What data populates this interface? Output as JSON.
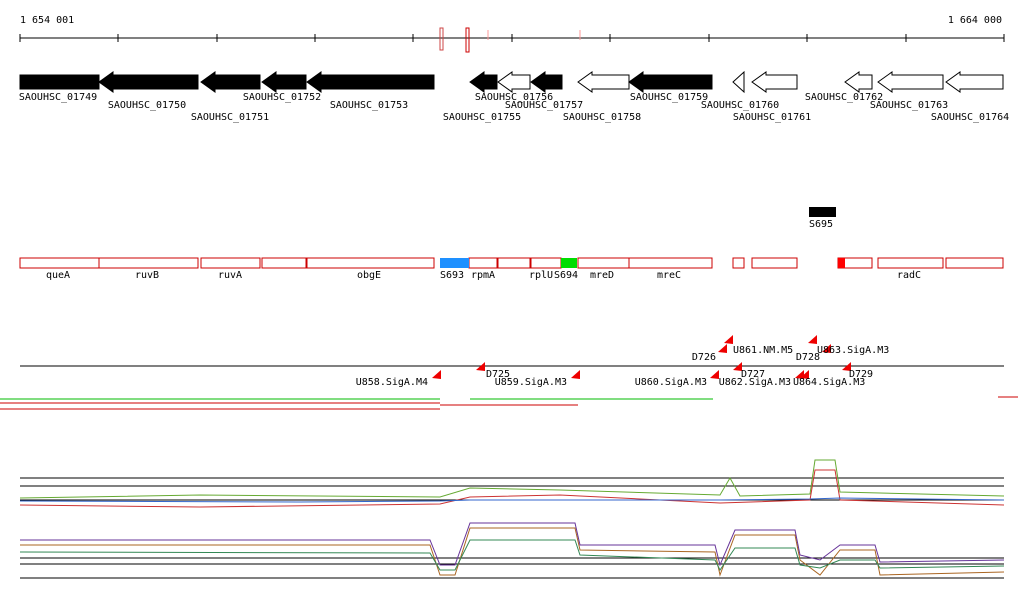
{
  "ruler": {
    "start": "1 654 001",
    "end": "1 664 000"
  },
  "genes": [
    "SAOUHSC_01749",
    "SAOUHSC_01750",
    "SAOUHSC_01751",
    "SAOUHSC_01752",
    "SAOUHSC_01753",
    "SAOUHSC_01755",
    "SAOUHSC_01756",
    "SAOUHSC_01757",
    "SAOUHSC_01758",
    "SAOUHSC_01759",
    "SAOUHSC_01760",
    "SAOUHSC_01761",
    "SAOUHSC_01762",
    "SAOUHSC_01763",
    "SAOUHSC_01764"
  ],
  "features": {
    "top": [
      "S695"
    ],
    "track": [
      "queA",
      "ruvB",
      "ruvA",
      "obgE",
      "S693",
      "rpmA",
      "rplU",
      "S694",
      "mreD",
      "mreC",
      "radC"
    ]
  },
  "sites": [
    "D726",
    "U861.NM.M5",
    "D728",
    "U863.SigA.M3",
    "U858.SigA.M4",
    "D725",
    "U859.SigA.M3",
    "U860.SigA.M3",
    "D727",
    "U862.SigA.M3",
    "U864.SigA.M3",
    "D729"
  ]
}
